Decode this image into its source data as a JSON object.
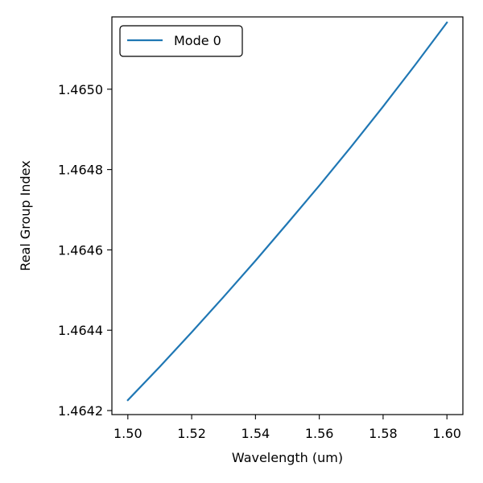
{
  "chart_data": {
    "type": "line",
    "title": "",
    "xlabel": "Wavelength (um)",
    "ylabel": "Real Group Index",
    "xlim": [
      1.495,
      1.605
    ],
    "ylim": [
      1.46419,
      1.46518
    ],
    "xticks": [
      1.5,
      1.52,
      1.54,
      1.56,
      1.58,
      1.6
    ],
    "xtick_labels": [
      "1.50",
      "1.52",
      "1.54",
      "1.56",
      "1.58",
      "1.60"
    ],
    "yticks": [
      1.4642,
      1.4644,
      1.4646,
      1.4648,
      1.465
    ],
    "ytick_labels": [
      "1.4642",
      "1.4644",
      "1.4646",
      "1.4648",
      "1.4650"
    ],
    "grid": false,
    "legend_position": "top-left",
    "series": [
      {
        "name": "Mode 0",
        "color": "#1f77b4",
        "x": [
          1.5,
          1.51,
          1.52,
          1.53,
          1.54,
          1.55,
          1.56,
          1.57,
          1.58,
          1.59,
          1.6
        ],
        "y": [
          1.464226,
          1.464309,
          1.464395,
          1.464483,
          1.464573,
          1.464666,
          1.46476,
          1.464857,
          1.464957,
          1.46506,
          1.465166
        ]
      }
    ]
  }
}
